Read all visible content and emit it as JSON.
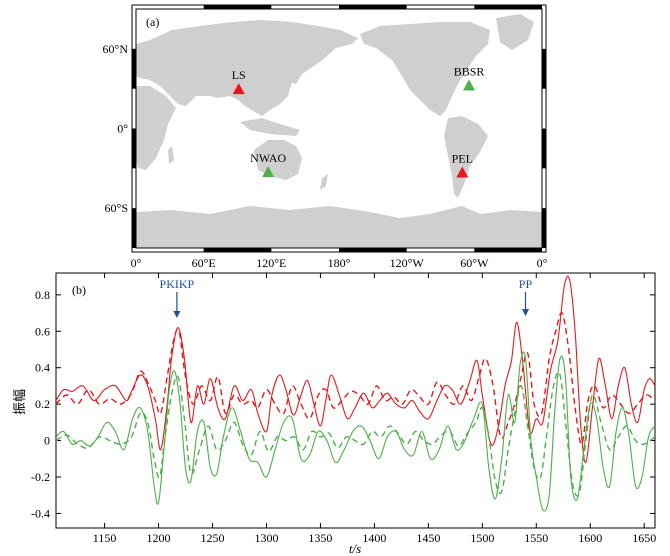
{
  "chart_data": [
    {
      "type": "map",
      "panel_label": "(a)",
      "projection": "cylindrical, centered on 180°",
      "x_ticks": [
        "0°",
        "60°E",
        "120°E",
        "180°",
        "120°W",
        "60°W",
        "0°"
      ],
      "y_ticks": [
        "60°N",
        "0°",
        "60°S"
      ],
      "lat_range": [
        -90,
        90
      ],
      "land_color": "#cfcfcf",
      "stations": [
        {
          "name": "LS",
          "lon": 91.1,
          "lat": 29.7,
          "color": "#e31a1c"
        },
        {
          "name": "BBSR",
          "lon": -64.7,
          "lat": 32.4,
          "color": "#4daf4a"
        },
        {
          "name": "NWAO",
          "lon": 117.2,
          "lat": -32.9,
          "color": "#4daf4a"
        },
        {
          "name": "PEL",
          "lon": -70.7,
          "lat": -33.1,
          "color": "#e31a1c"
        }
      ]
    },
    {
      "type": "line",
      "panel_label": "(b)",
      "xlabel": "t/s",
      "ylabel": "振幅",
      "xlim": [
        1105,
        1660
      ],
      "ylim": [
        -0.48,
        0.92
      ],
      "x_ticks": [
        1150,
        1200,
        1250,
        1300,
        1350,
        1400,
        1450,
        1500,
        1550,
        1600,
        1650
      ],
      "y_ticks": [
        "0.8",
        "0.6",
        "0.4",
        "0.2",
        "0",
        "-0.2",
        "-0.4"
      ],
      "y_tick_values": [
        0.8,
        0.6,
        0.4,
        0.2,
        0,
        -0.2,
        -0.4
      ],
      "annotations": [
        {
          "text": "PKIKP",
          "x": 1217,
          "y": 0.64,
          "color": "#1f4e9c"
        },
        {
          "text": "PP",
          "x": 1540,
          "y": 0.65,
          "color": "#1f4e9c"
        }
      ],
      "series": [
        {
          "color": "#e31a1c",
          "dash": false,
          "x": [
            1105,
            1112,
            1120,
            1130,
            1140,
            1150,
            1160,
            1170,
            1175,
            1183,
            1190,
            1197,
            1202,
            1208,
            1212,
            1218,
            1224,
            1230,
            1236,
            1242,
            1248,
            1255,
            1262,
            1270,
            1278,
            1286,
            1292,
            1300,
            1305,
            1312,
            1318,
            1325,
            1332,
            1338,
            1344,
            1350,
            1355,
            1360,
            1368,
            1375,
            1382,
            1390,
            1398,
            1405,
            1412,
            1420,
            1428,
            1435,
            1442,
            1450,
            1458,
            1465,
            1472,
            1480,
            1488,
            1495,
            1500,
            1508,
            1515,
            1521,
            1527,
            1532,
            1538,
            1544,
            1550,
            1556,
            1563,
            1570,
            1576,
            1581,
            1586,
            1591,
            1596,
            1602,
            1608,
            1614,
            1620,
            1626,
            1632,
            1638,
            1644,
            1650,
            1655,
            1660
          ],
          "y": [
            0.22,
            0.28,
            0.27,
            0.3,
            0.22,
            0.28,
            0.3,
            0.22,
            0.27,
            0.36,
            0.3,
            0.12,
            -0.05,
            0.2,
            0.45,
            0.62,
            0.45,
            0.1,
            0.3,
            0.2,
            0.34,
            0.18,
            0.12,
            0.3,
            0.22,
            0.28,
            0.15,
            0.05,
            0.25,
            0.36,
            0.28,
            0.14,
            0.25,
            0.33,
            0.2,
            0.08,
            0.22,
            0.36,
            0.24,
            0.12,
            0.18,
            0.26,
            0.18,
            0.22,
            0.26,
            0.2,
            0.18,
            0.22,
            0.16,
            0.12,
            0.22,
            0.3,
            0.28,
            0.2,
            0.32,
            0.44,
            0.25,
            -0.02,
            0.08,
            0.3,
            0.44,
            0.65,
            0.4,
            0.05,
            0.12,
            0.1,
            0.38,
            0.55,
            0.85,
            0.88,
            0.6,
            0.1,
            -0.12,
            0.18,
            0.45,
            0.3,
            0.12,
            0.3,
            0.4,
            0.2,
            0.1,
            0.28,
            0.34,
            0.3
          ]
        },
        {
          "color": "#e31a1c",
          "dash": true,
          "x": [
            1105,
            1115,
            1125,
            1135,
            1145,
            1155,
            1165,
            1175,
            1183,
            1190,
            1197,
            1202,
            1208,
            1214,
            1219,
            1225,
            1232,
            1240,
            1248,
            1255,
            1262,
            1270,
            1278,
            1286,
            1292,
            1300,
            1308,
            1316,
            1324,
            1332,
            1340,
            1348,
            1355,
            1362,
            1370,
            1378,
            1386,
            1394,
            1402,
            1410,
            1418,
            1426,
            1434,
            1442,
            1450,
            1458,
            1466,
            1474,
            1482,
            1490,
            1497,
            1503,
            1510,
            1517,
            1524,
            1530,
            1536,
            1542,
            1548,
            1555,
            1562,
            1568,
            1574,
            1580,
            1586,
            1592,
            1598,
            1604,
            1612,
            1620,
            1628,
            1636,
            1644,
            1652,
            1660
          ],
          "y": [
            0.2,
            0.25,
            0.2,
            0.28,
            0.2,
            0.23,
            0.2,
            0.26,
            0.38,
            0.32,
            0.22,
            0.15,
            0.35,
            0.55,
            0.6,
            0.35,
            0.2,
            0.3,
            0.22,
            0.35,
            0.15,
            0.25,
            0.2,
            0.22,
            0.18,
            0.28,
            0.2,
            0.15,
            0.3,
            0.2,
            0.12,
            0.25,
            0.28,
            0.18,
            0.22,
            0.27,
            0.25,
            0.2,
            0.3,
            0.22,
            0.24,
            0.2,
            0.28,
            0.24,
            0.2,
            0.32,
            0.25,
            0.2,
            0.3,
            0.22,
            0.35,
            0.45,
            0.3,
            0.02,
            0.1,
            0.2,
            0.35,
            0.48,
            0.2,
            0.15,
            0.45,
            0.6,
            0.7,
            0.5,
            0.18,
            -0.02,
            0.22,
            0.3,
            0.18,
            0.25,
            0.2,
            0.15,
            0.2,
            0.25,
            0.22
          ]
        },
        {
          "color": "#4daf4a",
          "dash": false,
          "x": [
            1105,
            1112,
            1120,
            1128,
            1136,
            1144,
            1152,
            1160,
            1168,
            1176,
            1183,
            1190,
            1196,
            1200,
            1205,
            1210,
            1215,
            1220,
            1225,
            1230,
            1236,
            1242,
            1248,
            1254,
            1260,
            1268,
            1276,
            1284,
            1292,
            1300,
            1308,
            1316,
            1324,
            1332,
            1340,
            1348,
            1356,
            1364,
            1372,
            1380,
            1388,
            1396,
            1404,
            1412,
            1420,
            1428,
            1436,
            1444,
            1452,
            1460,
            1468,
            1476,
            1484,
            1492,
            1500,
            1506,
            1512,
            1518,
            1524,
            1530,
            1535,
            1540,
            1545,
            1550,
            1556,
            1562,
            1567,
            1572,
            1577,
            1582,
            1588,
            1594,
            1600,
            1606,
            1612,
            1618,
            1624,
            1630,
            1636,
            1642,
            1648,
            1654,
            1660
          ],
          "y": [
            0.02,
            0.05,
            -0.02,
            0.0,
            -0.03,
            0.02,
            0.1,
            0.05,
            -0.05,
            0.12,
            0.18,
            0.05,
            -0.25,
            -0.34,
            -0.05,
            0.28,
            0.38,
            0.2,
            -0.15,
            -0.22,
            0.05,
            0.1,
            -0.15,
            -0.18,
            0.02,
            0.18,
            0.05,
            -0.1,
            -0.12,
            -0.2,
            -0.05,
            0.1,
            0.12,
            -0.1,
            -0.08,
            0.05,
            0.0,
            -0.12,
            -0.05,
            0.05,
            0.08,
            0.0,
            -0.1,
            0.02,
            0.05,
            -0.05,
            -0.08,
            0.05,
            -0.1,
            -0.05,
            0.08,
            -0.05,
            0.0,
            0.12,
            0.2,
            -0.15,
            -0.32,
            -0.1,
            0.25,
            0.1,
            0.42,
            0.45,
            0.0,
            -0.2,
            -0.38,
            -0.3,
            0.15,
            0.45,
            0.35,
            -0.2,
            -0.32,
            -0.05,
            0.2,
            0.12,
            -0.15,
            -0.25,
            0.05,
            0.18,
            0.02,
            -0.25,
            -0.2,
            0.02,
            0.08
          ]
        },
        {
          "color": "#4daf4a",
          "dash": true,
          "x": [
            1105,
            1115,
            1125,
            1135,
            1145,
            1155,
            1165,
            1175,
            1183,
            1190,
            1196,
            1201,
            1206,
            1212,
            1218,
            1224,
            1230,
            1238,
            1246,
            1254,
            1262,
            1270,
            1278,
            1286,
            1294,
            1302,
            1310,
            1318,
            1326,
            1334,
            1342,
            1350,
            1358,
            1366,
            1374,
            1382,
            1390,
            1398,
            1406,
            1414,
            1422,
            1430,
            1438,
            1446,
            1454,
            1462,
            1470,
            1478,
            1486,
            1494,
            1500,
            1506,
            1512,
            1518,
            1524,
            1530,
            1536,
            1542,
            1548,
            1554,
            1560,
            1566,
            1572,
            1578,
            1584,
            1590,
            1596,
            1602,
            1610,
            1618,
            1626,
            1634,
            1642,
            1650,
            1660
          ],
          "y": [
            0.0,
            0.03,
            -0.02,
            -0.04,
            0.02,
            0.0,
            -0.02,
            0.02,
            0.15,
            0.1,
            -0.1,
            -0.2,
            0.02,
            0.25,
            0.35,
            0.12,
            -0.18,
            -0.05,
            0.08,
            -0.05,
            0.0,
            0.1,
            -0.02,
            -0.08,
            0.05,
            -0.06,
            0.02,
            0.0,
            0.02,
            -0.05,
            0.05,
            0.02,
            0.04,
            -0.04,
            0.02,
            0.0,
            -0.02,
            0.05,
            0.02,
            0.08,
            0.04,
            -0.02,
            0.05,
            0.0,
            -0.02,
            0.03,
            0.05,
            -0.03,
            0.04,
            0.1,
            0.18,
            0.02,
            -0.22,
            -0.28,
            -0.05,
            0.15,
            0.3,
            0.08,
            -0.15,
            -0.2,
            0.05,
            0.3,
            0.36,
            0.05,
            -0.25,
            -0.28,
            0.0,
            0.25,
            0.1,
            -0.05,
            0.02,
            0.08,
            0.0,
            -0.02,
            0.02
          ]
        }
      ]
    }
  ]
}
